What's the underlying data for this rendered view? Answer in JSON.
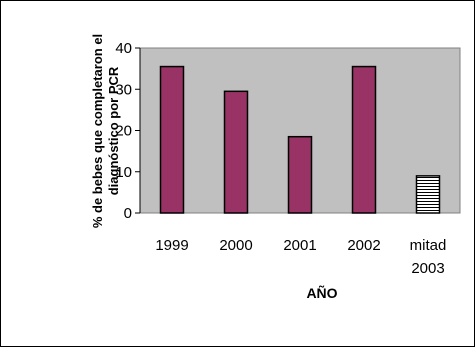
{
  "chart_data": {
    "type": "bar",
    "title": "",
    "xlabel": "AÑO",
    "ylabel_lines": [
      "% de bebes que completaron el",
      "diagnóstico por PCR"
    ],
    "categories": [
      [
        "1999"
      ],
      [
        "2000"
      ],
      [
        "2001"
      ],
      [
        "2002"
      ],
      [
        "mitad",
        "2003"
      ]
    ],
    "values": [
      35.5,
      29.5,
      18.5,
      35.5,
      9
    ],
    "ylim": [
      0,
      40
    ],
    "yticks": [
      0,
      10,
      20,
      30,
      40
    ],
    "grid": false,
    "legend": "none",
    "colors": {
      "plot_background": "#c0c0c0",
      "bar_fill": "#993366",
      "bar_outline": "#000000",
      "last_bar_pattern": "horizontal-stripes"
    }
  }
}
